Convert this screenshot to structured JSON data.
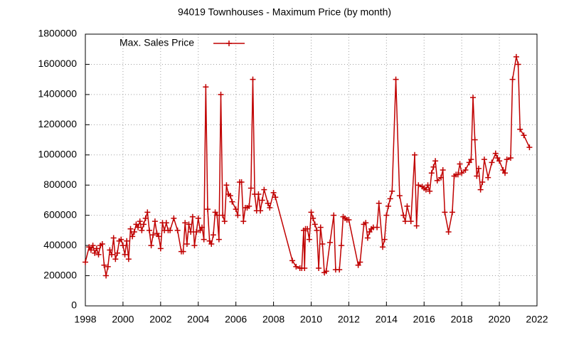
{
  "chart_data": {
    "type": "line",
    "title": "94019 Townhouses - Maximum Price (by month)",
    "x": [
      1998.0,
      1998.2,
      1998.3,
      1998.4,
      1998.5,
      1998.6,
      1998.7,
      1998.8,
      1998.9,
      1999.0,
      1999.1,
      1999.2,
      1999.3,
      1999.4,
      1999.5,
      1999.6,
      1999.7,
      1999.8,
      1999.9,
      2000.0,
      2000.1,
      2000.2,
      2000.3,
      2000.4,
      2000.5,
      2000.6,
      2000.7,
      2000.8,
      2000.9,
      2001.0,
      2001.1,
      2001.2,
      2001.3,
      2001.4,
      2001.5,
      2001.6,
      2001.7,
      2001.8,
      2001.9,
      2002.0,
      2002.1,
      2002.2,
      2002.3,
      2002.4,
      2002.5,
      2002.7,
      2002.9,
      2003.1,
      2003.2,
      2003.3,
      2003.4,
      2003.5,
      2003.6,
      2003.7,
      2003.8,
      2003.9,
      2004.0,
      2004.1,
      2004.2,
      2004.3,
      2004.4,
      2004.5,
      2004.6,
      2004.7,
      2004.8,
      2004.9,
      2005.0,
      2005.1,
      2005.2,
      2005.3,
      2005.4,
      2005.5,
      2005.6,
      2005.7,
      2005.8,
      2006.0,
      2006.1,
      2006.2,
      2006.3,
      2006.4,
      2006.5,
      2006.6,
      2006.7,
      2006.8,
      2006.9,
      2007.0,
      2007.1,
      2007.2,
      2007.3,
      2007.4,
      2007.5,
      2007.7,
      2007.8,
      2008.0,
      2008.1,
      2009.0,
      2009.2,
      2009.4,
      2009.5,
      2009.6,
      2009.65,
      2009.7,
      2009.8,
      2009.9,
      2010.0,
      2010.1,
      2010.2,
      2010.3,
      2010.4,
      2010.5,
      2010.6,
      2010.7,
      2010.8,
      2011.0,
      2011.2,
      2011.3,
      2011.5,
      2011.6,
      2011.7,
      2011.8,
      2011.9,
      2012.0,
      2012.5,
      2012.6,
      2012.8,
      2012.9,
      2013.0,
      2013.1,
      2013.2,
      2013.3,
      2013.5,
      2013.6,
      2013.8,
      2013.9,
      2014.0,
      2014.1,
      2014.2,
      2014.3,
      2014.5,
      2014.7,
      2014.9,
      2015.0,
      2015.1,
      2015.3,
      2015.5,
      2015.6,
      2015.7,
      2015.9,
      2016.0,
      2016.1,
      2016.2,
      2016.3,
      2016.4,
      2016.5,
      2016.6,
      2016.7,
      2016.9,
      2017.0,
      2017.1,
      2017.3,
      2017.5,
      2017.6,
      2017.7,
      2017.8,
      2017.9,
      2018.0,
      2018.2,
      2018.4,
      2018.5,
      2018.6,
      2018.7,
      2018.8,
      2018.9,
      2019.0,
      2019.1,
      2019.2,
      2019.4,
      2019.6,
      2019.8,
      2019.9,
      2020.0,
      2020.2,
      2020.3,
      2020.4,
      2020.6,
      2020.7,
      2020.9,
      2021.0,
      2021.1,
      2021.3,
      2021.6
    ],
    "series": [
      {
        "name": "Max. Sales Price",
        "color": "#c00000",
        "values": [
          290000,
          390000,
          370000,
          400000,
          350000,
          380000,
          340000,
          400000,
          410000,
          270000,
          200000,
          260000,
          370000,
          340000,
          450000,
          310000,
          350000,
          430000,
          440000,
          400000,
          340000,
          430000,
          310000,
          510000,
          460000,
          490000,
          540000,
          520000,
          560000,
          500000,
          540000,
          580000,
          620000,
          500000,
          400000,
          470000,
          560000,
          480000,
          460000,
          380000,
          550000,
          500000,
          550000,
          500000,
          500000,
          580000,
          500000,
          360000,
          360000,
          550000,
          410000,
          540000,
          490000,
          590000,
          400000,
          490000,
          580000,
          500000,
          520000,
          440000,
          1450000,
          640000,
          430000,
          410000,
          470000,
          620000,
          600000,
          440000,
          1400000,
          600000,
          560000,
          800000,
          740000,
          730000,
          690000,
          640000,
          600000,
          820000,
          820000,
          560000,
          650000,
          650000,
          660000,
          780000,
          1500000,
          740000,
          630000,
          740000,
          630000,
          700000,
          770000,
          680000,
          650000,
          750000,
          720000,
          300000,
          260000,
          250000,
          250000,
          500000,
          250000,
          510000,
          510000,
          440000,
          620000,
          580000,
          540000,
          500000,
          250000,
          520000,
          410000,
          220000,
          230000,
          420000,
          600000,
          240000,
          240000,
          400000,
          590000,
          580000,
          570000,
          570000,
          270000,
          290000,
          540000,
          550000,
          450000,
          490000,
          510000,
          520000,
          520000,
          680000,
          390000,
          440000,
          600000,
          660000,
          710000,
          760000,
          1500000,
          730000,
          600000,
          560000,
          660000,
          560000,
          1000000,
          530000,
          800000,
          790000,
          780000,
          770000,
          800000,
          760000,
          880000,
          920000,
          960000,
          830000,
          850000,
          900000,
          620000,
          490000,
          620000,
          860000,
          870000,
          870000,
          940000,
          880000,
          900000,
          950000,
          970000,
          1380000,
          1100000,
          860000,
          910000,
          770000,
          820000,
          970000,
          850000,
          950000,
          1010000,
          980000,
          960000,
          900000,
          880000,
          970000,
          980000,
          1500000,
          1650000,
          1600000,
          1170000,
          1130000,
          1050000
        ]
      }
    ],
    "xlim": [
      1998,
      2022
    ],
    "xticks": [
      1998,
      2000,
      2002,
      2004,
      2006,
      2008,
      2010,
      2012,
      2014,
      2016,
      2018,
      2020,
      2022
    ],
    "ylim": [
      0,
      1800000
    ],
    "yticks": [
      0,
      200000,
      400000,
      600000,
      800000,
      1000000,
      1200000,
      1400000,
      1600000,
      1800000
    ],
    "grid": true,
    "legend": "top-left"
  }
}
